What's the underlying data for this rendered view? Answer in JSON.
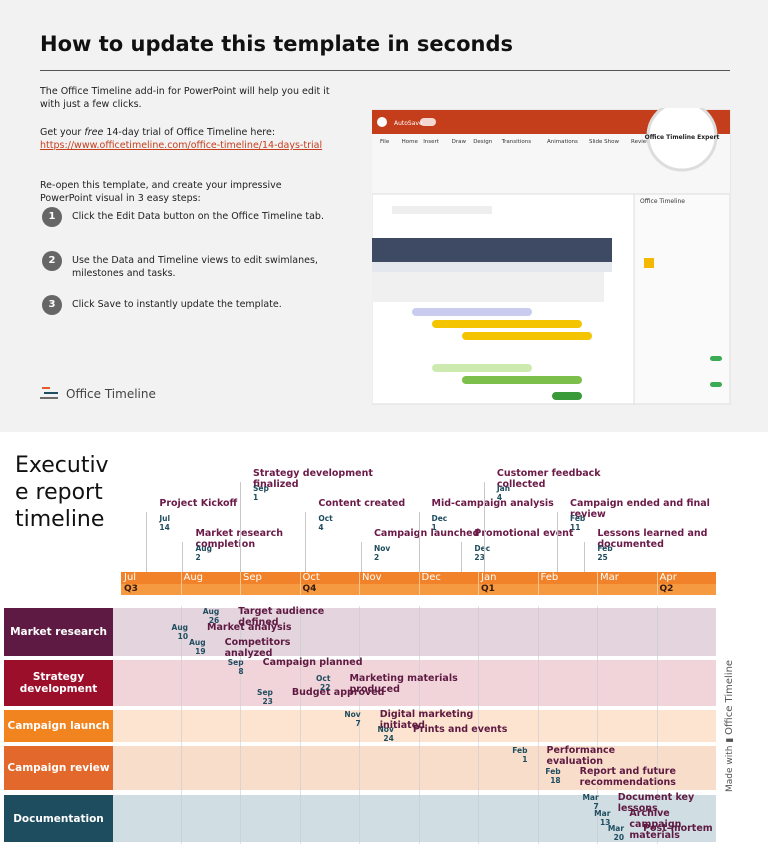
{
  "header": {
    "title": "How to update this template in seconds",
    "intro": "The Office Timeline add-in for PowerPoint will help you edit it with just a few clicks.",
    "trial": {
      "before": "Get your ",
      "emphasis": "free",
      "after": " 14-day trial of Office Timeline here:",
      "link": "https://www.officetimeline.com/office-timeline/14-days-trial"
    },
    "reopen": "Re-open this template, and create your impressive PowerPoint visual in 3 easy steps:",
    "steps": [
      {
        "number": 1,
        "text": "Click the Edit Data button on the Office Timeline tab."
      },
      {
        "number": 2,
        "text": "Use the Data and Timeline views to edit swimlanes, milestones and tasks."
      },
      {
        "number": 3,
        "text": "Click Save to instantly update the template."
      }
    ],
    "logo": "Office Timeline"
  },
  "screenshot": {
    "autosave": "AutoSave",
    "tabs": [
      "File",
      "Home",
      "Insert",
      "Draw",
      "Design",
      "Transitions",
      "Animations",
      "Slide Show",
      "Review"
    ],
    "callout": "Office Timeline Expert",
    "panel_title": "Office Timeline"
  },
  "timeline": {
    "title": "Executive report timeline",
    "months": [
      "Jul",
      "Aug",
      "Sep",
      "Oct",
      "Nov",
      "Dec",
      "Jan",
      "Feb",
      "Mar",
      "Apr"
    ],
    "quarters": [
      {
        "label": "Q3",
        "start": "Jul"
      },
      {
        "label": "Q4",
        "start": "Oct"
      },
      {
        "label": "Q1",
        "start": "Jan"
      },
      {
        "label": "Q2",
        "start": "Apr"
      }
    ],
    "milestones": [
      {
        "label": "Project Kickoff",
        "month": "Jul",
        "day": 14
      },
      {
        "label": "Market research completion",
        "month": "Aug",
        "day": 2
      },
      {
        "label": "Strategy development finalized",
        "month": "Sep",
        "day": 1
      },
      {
        "label": "Content created",
        "month": "Oct",
        "day": 4
      },
      {
        "label": "Campaign launched",
        "month": "Nov",
        "day": 2
      },
      {
        "label": "Mid-campaign analysis",
        "month": "Dec",
        "day": 1
      },
      {
        "label": "Promotional event",
        "month": "Dec",
        "day": 23
      },
      {
        "label": "Customer feedback collected",
        "month": "Jan",
        "day": 4
      },
      {
        "label": "Campaign ended and final review",
        "month": "Feb",
        "day": 11
      },
      {
        "label": "Lessons learned and documented",
        "month": "Feb",
        "day": 25
      }
    ],
    "swimlanes": [
      {
        "name": "Market research",
        "color": "#5e1a42",
        "band": "#e4d4dd",
        "items": [
          {
            "label": "Target audience defined",
            "month": "Aug",
            "day": 26
          },
          {
            "label": "Market analysis",
            "month": "Aug",
            "day": 10
          },
          {
            "label": "Competitors analyzed",
            "month": "Aug",
            "day": 19
          }
        ]
      },
      {
        "name": "Strategy development",
        "color": "#9c0f2b",
        "band": "#f1d4d9",
        "items": [
          {
            "label": "Campaign planned",
            "month": "Sep",
            "day": 8
          },
          {
            "label": "Budget approved",
            "month": "Sep",
            "day": 23
          },
          {
            "label": "Marketing materials produced",
            "month": "Oct",
            "day": 22
          }
        ]
      },
      {
        "name": "Campaign launch",
        "color": "#f2841f",
        "band": "#fde4d0",
        "items": [
          {
            "label": "Digital marketing initiated",
            "month": "Nov",
            "day": 7
          },
          {
            "label": "Prints and events",
            "month": "Nov",
            "day": 24
          }
        ]
      },
      {
        "name": "Campaign review",
        "color": "#e2692b",
        "band": "#f9ddcb",
        "items": [
          {
            "label": "Performance evaluation",
            "month": "Feb",
            "day": 1
          },
          {
            "label": "Report and future recommendations",
            "month": "Feb",
            "day": 18
          }
        ]
      },
      {
        "name": "Documentation",
        "color": "#1e4d5f",
        "band": "#d0dde3",
        "items": [
          {
            "label": "Document key lessons",
            "month": "Mar",
            "day": 7
          },
          {
            "label": "Archive campaign materials",
            "month": "Mar",
            "day": 13
          },
          {
            "label": "Post-mortem",
            "month": "Mar",
            "day": 20
          }
        ]
      }
    ],
    "credit_prefix": "Made with",
    "credit_brand": "Office Timeline"
  }
}
